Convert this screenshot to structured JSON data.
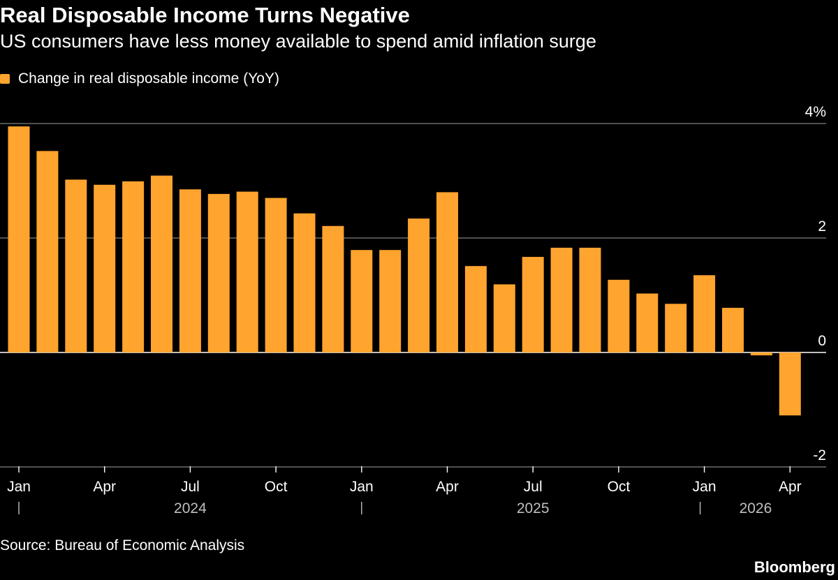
{
  "chart_data": {
    "type": "bar",
    "title": "Real Disposable Income Turns Negative",
    "subtitle": "US consumers have less money available to spend amid inflation surge",
    "series": [
      {
        "name": "Change in real disposable income (YoY)",
        "color": "#ffa42e",
        "values": [
          3.95,
          3.52,
          3.02,
          2.93,
          2.99,
          3.09,
          2.85,
          2.77,
          2.81,
          2.7,
          2.43,
          2.21,
          1.79,
          1.79,
          2.34,
          2.8,
          1.51,
          1.19,
          1.67,
          1.83,
          1.83,
          1.27,
          1.03,
          0.85,
          1.35,
          0.78,
          -0.05,
          -1.1
        ]
      }
    ],
    "categories": [
      "Jan 2024",
      "Feb 2024",
      "Mar 2024",
      "Apr 2024",
      "May 2024",
      "Jun 2024",
      "Jul 2024",
      "Aug 2024",
      "Sep 2024",
      "Oct 2024",
      "Nov 2024",
      "Dec 2024",
      "Jan 2025",
      "Feb 2025",
      "Mar 2025",
      "Apr 2025",
      "May 2025",
      "Jun 2025",
      "Jul 2025",
      "Aug 2025",
      "Sep 2025",
      "Oct 2025",
      "Nov 2025",
      "Dec 2025",
      "Jan 2026",
      "Feb 2026",
      "Mar 2026",
      "Apr 2026"
    ],
    "x_ticks": [
      {
        "index": 0,
        "label": "Jan"
      },
      {
        "index": 3,
        "label": "Apr"
      },
      {
        "index": 6,
        "label": "Jul"
      },
      {
        "index": 9,
        "label": "Oct"
      },
      {
        "index": 12,
        "label": "Jan"
      },
      {
        "index": 15,
        "label": "Apr"
      },
      {
        "index": 18,
        "label": "Jul"
      },
      {
        "index": 21,
        "label": "Oct"
      },
      {
        "index": 24,
        "label": "Jan"
      },
      {
        "index": 27,
        "label": "Apr"
      }
    ],
    "year_labels": [
      {
        "label": "2024",
        "from": 0,
        "to": 12,
        "separator_at": 0
      },
      {
        "label": "2025",
        "from": 12,
        "to": 24,
        "separator_at": 12
      },
      {
        "label": "2026",
        "from": 24,
        "to": 28,
        "separator_at": 24
      }
    ],
    "y_ticks": [
      {
        "value": 4,
        "label": "4%"
      },
      {
        "value": 2,
        "label": "2"
      },
      {
        "value": 0,
        "label": "0"
      },
      {
        "value": -2,
        "label": "-2"
      }
    ],
    "ylim": [
      -2,
      4
    ],
    "xlabel": "",
    "ylabel": "",
    "grid": true,
    "legend_position": "top-left",
    "source": "Source: Bureau of Economic Analysis",
    "brand": "Bloomberg"
  }
}
